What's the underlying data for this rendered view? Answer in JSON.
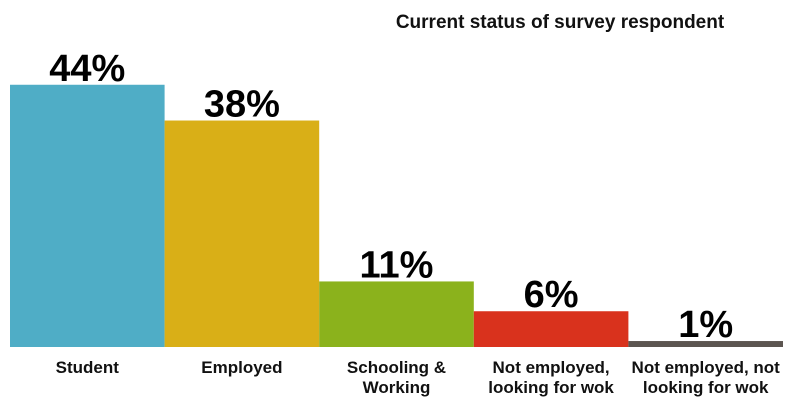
{
  "chart_data": {
    "type": "bar",
    "title": "Current status of survey respondent",
    "xlabel": "",
    "ylabel": "",
    "ylim": [
      0,
      50
    ],
    "grid": false,
    "legend": "none",
    "categories": [
      "Student",
      "Employed",
      "Schooling & Working",
      "Not employed, looking for wok",
      "Not employed, not looking for wok"
    ],
    "category_lines": [
      [
        "Student"
      ],
      [
        "Employed"
      ],
      [
        "Schooling &",
        "Working"
      ],
      [
        "Not employed,",
        "looking for wok"
      ],
      [
        "Not employed, not",
        "looking for wok"
      ]
    ],
    "values": [
      44,
      38,
      11,
      6,
      1
    ],
    "value_labels": [
      "44%",
      "38%",
      "11%",
      "6%",
      "1%"
    ],
    "colors": [
      "#4fadc6",
      "#d9af17",
      "#8bb21c",
      "#d9321d",
      "#5c5550"
    ]
  }
}
